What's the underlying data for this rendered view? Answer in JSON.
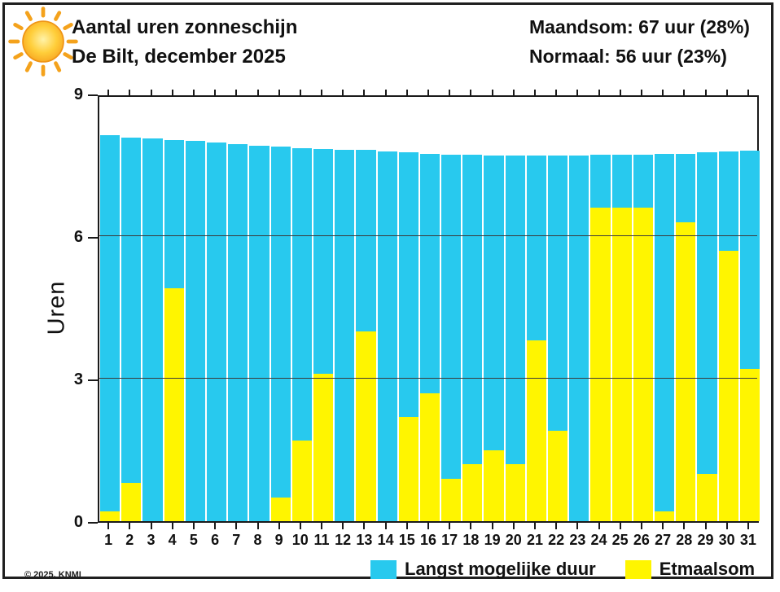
{
  "header": {
    "title": "Aantal uren zonneschijn",
    "subtitle": "De Bilt, december 2025",
    "maandsom": "Maandsom: 67 uur (28%)",
    "normaal": "Normaal: 56 uur (23%)"
  },
  "footer": {
    "copyright": "© 2025, KNMI"
  },
  "legend": [
    {
      "label": "Langst mogelijke duur",
      "color": "#28C9EE"
    },
    {
      "label": "Etmaalsom",
      "color": "#FFF500"
    }
  ],
  "colors": {
    "cyan": "#28C9EE",
    "yellow": "#FFF500",
    "axis": "#1a1a1a",
    "grid": "#3a3a3a",
    "sun_core": "#FFC62E",
    "sun_ray": "#F4A21C"
  },
  "chart_data": {
    "type": "bar",
    "title": "Aantal uren zonneschijn",
    "subtitle": "De Bilt, december 2025",
    "xlabel": "",
    "ylabel": "Uren",
    "ylim": [
      0,
      9
    ],
    "yticks": [
      0,
      3,
      6,
      9
    ],
    "gridlines": [
      3,
      6
    ],
    "grid": true,
    "legend_position": "bottom",
    "categories": [
      1,
      2,
      3,
      4,
      5,
      6,
      7,
      8,
      9,
      10,
      11,
      12,
      13,
      14,
      15,
      16,
      17,
      18,
      19,
      20,
      21,
      22,
      23,
      24,
      25,
      26,
      27,
      28,
      29,
      30,
      31
    ],
    "series": [
      {
        "name": "Langst mogelijke duur",
        "color": "#28C9EE",
        "values": [
          8.13,
          8.08,
          8.05,
          8.02,
          8.0,
          7.97,
          7.93,
          7.91,
          7.88,
          7.86,
          7.84,
          7.82,
          7.81,
          7.79,
          7.77,
          7.74,
          7.72,
          7.71,
          7.7,
          7.7,
          7.69,
          7.7,
          7.7,
          7.71,
          7.71,
          7.72,
          7.73,
          7.74,
          7.76,
          7.78,
          7.8
        ]
      },
      {
        "name": "Etmaalsom",
        "color": "#FFF500",
        "values": [
          0.2,
          0.8,
          0,
          4.9,
          0,
          0,
          0,
          0,
          0.5,
          1.7,
          3.1,
          0,
          4.0,
          0,
          2.2,
          2.7,
          0.9,
          1.2,
          1.5,
          1.2,
          3.8,
          1.9,
          0,
          6.6,
          6.6,
          6.6,
          0.2,
          6.3,
          1.0,
          5.7,
          3.2
        ]
      }
    ],
    "annotations": [
      "Maandsom: 67 uur (28%)",
      "Normaal: 56 uur (23%)"
    ]
  }
}
